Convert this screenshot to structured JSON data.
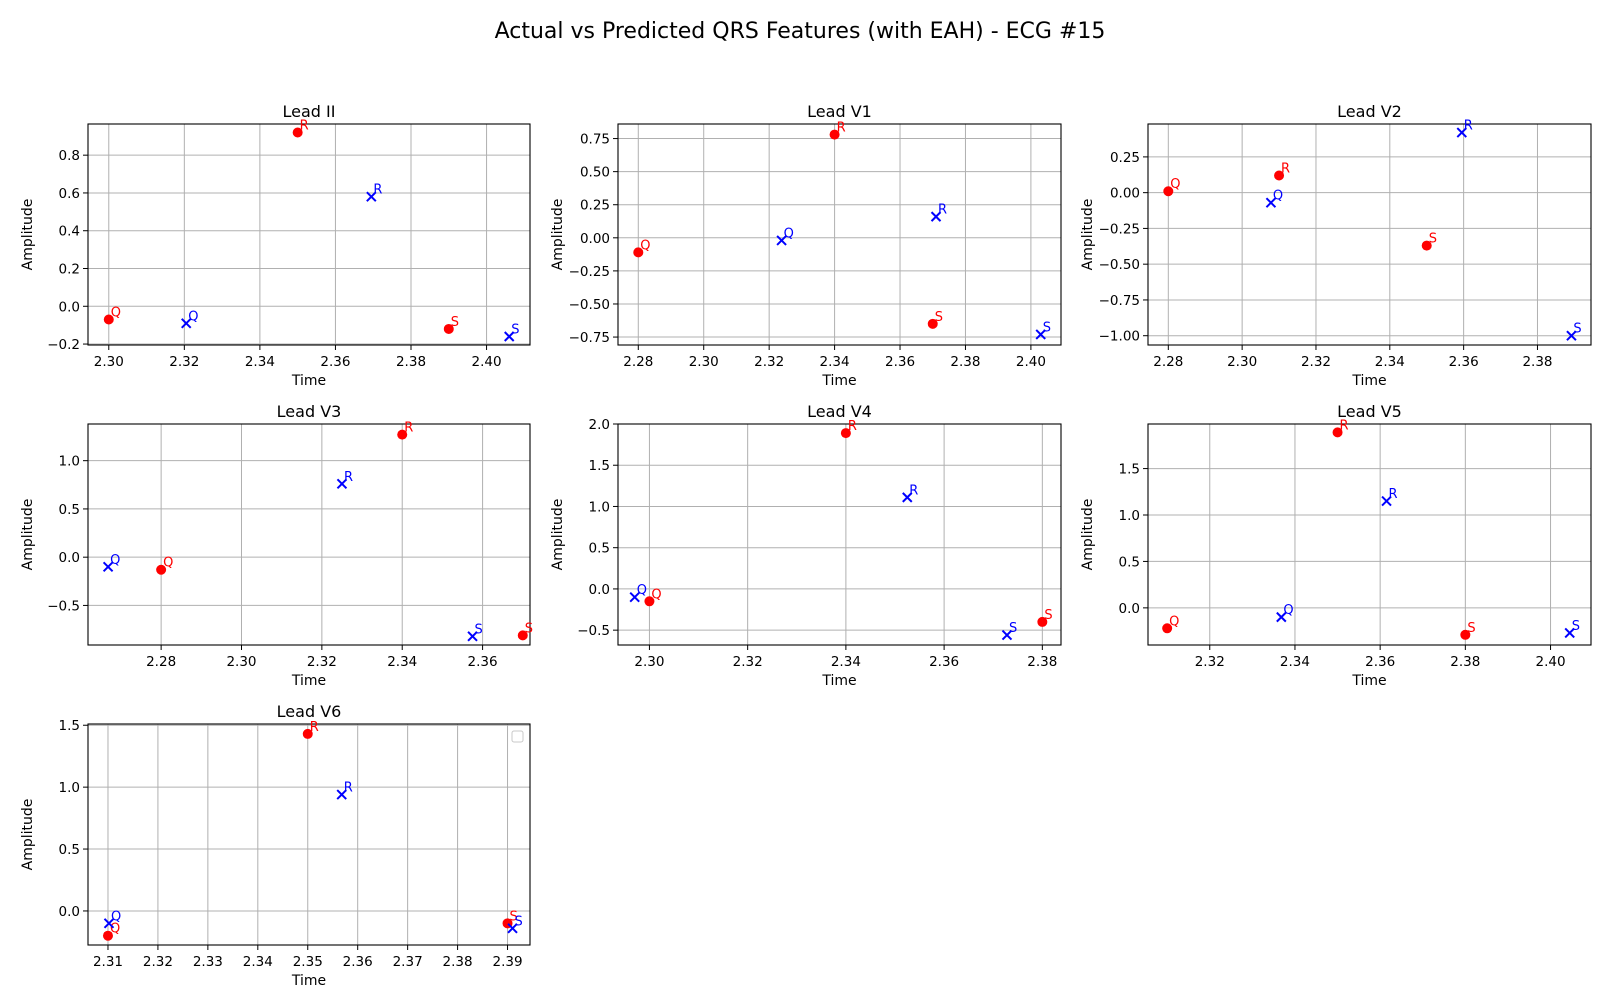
{
  "figure": {
    "title": "Actual vs Predicted QRS Features (with EAH) - ECG #15"
  },
  "colors": {
    "actual": "#ff0000",
    "predicted": "#0000ff",
    "grid": "#b0b0b0",
    "axis": "#000000"
  },
  "chart_data": [
    {
      "type": "scatter",
      "title": "Lead II",
      "xlabel": "Time",
      "ylabel": "Amplitude",
      "xlim": [
        2.2945,
        2.4115
      ],
      "ylim": [
        -0.205,
        0.965
      ],
      "xticks": [
        2.3,
        2.32,
        2.34,
        2.36,
        2.38,
        2.4
      ],
      "xtick_labels": [
        "2.30",
        "2.32",
        "2.34",
        "2.36",
        "2.38",
        "2.40"
      ],
      "yticks": [
        -0.2,
        0.0,
        0.2,
        0.4,
        0.6,
        0.8
      ],
      "ytick_labels": [
        "−0.2",
        "0.0",
        "0.2",
        "0.4",
        "0.6",
        "0.8"
      ],
      "grid": true,
      "series": [
        {
          "marker": "circle",
          "color": "#ff0000",
          "points": [
            {
              "label": "Q",
              "x": 2.3,
              "y": -0.07
            },
            {
              "label": "R",
              "x": 2.35,
              "y": 0.92
            },
            {
              "label": "S",
              "x": 2.39,
              "y": -0.12
            }
          ]
        },
        {
          "marker": "x",
          "color": "#0000ff",
          "points": [
            {
              "label": "Q",
              "x": 2.3205,
              "y": -0.09
            },
            {
              "label": "R",
              "x": 2.3695,
              "y": 0.58
            },
            {
              "label": "S",
              "x": 2.406,
              "y": -0.16
            }
          ]
        }
      ]
    },
    {
      "type": "scatter",
      "title": "Lead V1",
      "xlabel": "Time",
      "ylabel": "Amplitude",
      "xlim": [
        2.2738,
        2.4092
      ],
      "ylim": [
        -0.81,
        0.86
      ],
      "xticks": [
        2.28,
        2.3,
        2.32,
        2.34,
        2.36,
        2.38,
        2.4
      ],
      "xtick_labels": [
        "2.28",
        "2.30",
        "2.32",
        "2.34",
        "2.36",
        "2.38",
        "2.40"
      ],
      "yticks": [
        -0.75,
        -0.5,
        -0.25,
        0.0,
        0.25,
        0.5,
        0.75
      ],
      "ytick_labels": [
        "−0.75",
        "−0.50",
        "−0.25",
        "0.00",
        "0.25",
        "0.50",
        "0.75"
      ],
      "grid": true,
      "series": [
        {
          "marker": "circle",
          "color": "#ff0000",
          "points": [
            {
              "label": "Q",
              "x": 2.28,
              "y": -0.11
            },
            {
              "label": "R",
              "x": 2.34,
              "y": 0.78
            },
            {
              "label": "S",
              "x": 2.37,
              "y": -0.65
            }
          ]
        },
        {
          "marker": "x",
          "color": "#0000ff",
          "points": [
            {
              "label": "Q",
              "x": 2.3238,
              "y": -0.02
            },
            {
              "label": "R",
              "x": 2.371,
              "y": 0.16
            },
            {
              "label": "S",
              "x": 2.403,
              "y": -0.73
            }
          ]
        }
      ]
    },
    {
      "type": "scatter",
      "title": "Lead V2",
      "xlabel": "Time",
      "ylabel": "Amplitude",
      "xlim": [
        2.2745,
        2.3945
      ],
      "ylim": [
        -1.065,
        0.48
      ],
      "xticks": [
        2.28,
        2.3,
        2.32,
        2.34,
        2.36,
        2.38
      ],
      "xtick_labels": [
        "2.28",
        "2.30",
        "2.32",
        "2.34",
        "2.36",
        "2.38"
      ],
      "yticks": [
        -1.0,
        -0.75,
        -0.5,
        -0.25,
        0.0,
        0.25
      ],
      "ytick_labels": [
        "−1.00",
        "−0.75",
        "−0.50",
        "−0.25",
        "0.00",
        "0.25"
      ],
      "grid": true,
      "series": [
        {
          "marker": "circle",
          "color": "#ff0000",
          "points": [
            {
              "label": "Q",
              "x": 2.28,
              "y": 0.01
            },
            {
              "label": "R",
              "x": 2.31,
              "y": 0.12
            },
            {
              "label": "S",
              "x": 2.35,
              "y": -0.37
            }
          ]
        },
        {
          "marker": "x",
          "color": "#0000ff",
          "points": [
            {
              "label": "Q",
              "x": 2.3078,
              "y": -0.07
            },
            {
              "label": "R",
              "x": 2.3595,
              "y": 0.42
            },
            {
              "label": "S",
              "x": 2.3892,
              "y": -1.0
            }
          ]
        }
      ]
    },
    {
      "type": "scatter",
      "title": "Lead V3",
      "xlabel": "Time",
      "ylabel": "Amplitude",
      "xlim": [
        2.2618,
        2.3718
      ],
      "ylim": [
        -0.91,
        1.38
      ],
      "xticks": [
        2.28,
        2.3,
        2.32,
        2.34,
        2.36
      ],
      "xtick_labels": [
        "2.28",
        "2.30",
        "2.32",
        "2.34",
        "2.36"
      ],
      "yticks": [
        -0.5,
        0.0,
        0.5,
        1.0
      ],
      "ytick_labels": [
        "−0.5",
        "0.0",
        "0.5",
        "1.0"
      ],
      "grid": true,
      "series": [
        {
          "marker": "circle",
          "color": "#ff0000",
          "points": [
            {
              "label": "Q",
              "x": 2.28,
              "y": -0.13
            },
            {
              "label": "R",
              "x": 2.34,
              "y": 1.27
            },
            {
              "label": "S",
              "x": 2.37,
              "y": -0.81
            }
          ]
        },
        {
          "marker": "x",
          "color": "#0000ff",
          "points": [
            {
              "label": "Q",
              "x": 2.2668,
              "y": -0.1
            },
            {
              "label": "R",
              "x": 2.325,
              "y": 0.76
            },
            {
              "label": "S",
              "x": 2.3575,
              "y": -0.82
            }
          ]
        }
      ]
    },
    {
      "type": "scatter",
      "title": "Lead V4",
      "xlabel": "Time",
      "ylabel": "Amplitude",
      "xlim": [
        2.2936,
        2.3838
      ],
      "ylim": [
        -0.68,
        2.0
      ],
      "xticks": [
        2.3,
        2.32,
        2.34,
        2.36,
        2.38
      ],
      "xtick_labels": [
        "2.30",
        "2.32",
        "2.34",
        "2.36",
        "2.38"
      ],
      "yticks": [
        -0.5,
        0.0,
        0.5,
        1.0,
        1.5,
        2.0
      ],
      "ytick_labels": [
        "−0.5",
        "0.0",
        "0.5",
        "1.0",
        "1.5",
        "2.0"
      ],
      "grid": true,
      "series": [
        {
          "marker": "circle",
          "color": "#ff0000",
          "points": [
            {
              "label": "Q",
              "x": 2.3,
              "y": -0.15
            },
            {
              "label": "R",
              "x": 2.34,
              "y": 1.89
            },
            {
              "label": "S",
              "x": 2.38,
              "y": -0.4
            }
          ]
        },
        {
          "marker": "x",
          "color": "#0000ff",
          "points": [
            {
              "label": "Q",
              "x": 2.297,
              "y": -0.1
            },
            {
              "label": "R",
              "x": 2.3525,
              "y": 1.11
            },
            {
              "label": "S",
              "x": 2.3728,
              "y": -0.56
            }
          ]
        }
      ]
    },
    {
      "type": "scatter",
      "title": "Lead V5",
      "xlabel": "Time",
      "ylabel": "Amplitude",
      "xlim": [
        2.3055,
        2.4095
      ],
      "ylim": [
        -0.4,
        1.98
      ],
      "xticks": [
        2.32,
        2.34,
        2.36,
        2.38,
        2.4
      ],
      "xtick_labels": [
        "2.32",
        "2.34",
        "2.36",
        "2.38",
        "2.40"
      ],
      "yticks": [
        0.0,
        0.5,
        1.0,
        1.5
      ],
      "ytick_labels": [
        "0.0",
        "0.5",
        "1.0",
        "1.5"
      ],
      "grid": true,
      "series": [
        {
          "marker": "circle",
          "color": "#ff0000",
          "points": [
            {
              "label": "Q",
              "x": 2.31,
              "y": -0.22
            },
            {
              "label": "R",
              "x": 2.35,
              "y": 1.89
            },
            {
              "label": "S",
              "x": 2.38,
              "y": -0.29
            }
          ]
        },
        {
          "marker": "x",
          "color": "#0000ff",
          "points": [
            {
              "label": "Q",
              "x": 2.3368,
              "y": -0.1
            },
            {
              "label": "R",
              "x": 2.3615,
              "y": 1.15
            },
            {
              "label": "S",
              "x": 2.4045,
              "y": -0.27
            }
          ]
        }
      ]
    },
    {
      "type": "scatter",
      "title": "Lead V6",
      "xlabel": "Time",
      "ylabel": "Amplitude",
      "xlim": [
        2.306,
        2.3945
      ],
      "ylim": [
        -0.275,
        1.51
      ],
      "xticks": [
        2.31,
        2.32,
        2.33,
        2.34,
        2.35,
        2.36,
        2.37,
        2.38,
        2.39
      ],
      "xtick_labels": [
        "2.31",
        "2.32",
        "2.33",
        "2.34",
        "2.35",
        "2.36",
        "2.37",
        "2.38",
        "2.39"
      ],
      "yticks": [
        0.0,
        0.5,
        1.0,
        1.5
      ],
      "ytick_labels": [
        "0.0",
        "0.5",
        "1.0",
        "1.5"
      ],
      "grid": true,
      "legend": "top-right",
      "series": [
        {
          "marker": "circle",
          "color": "#ff0000",
          "points": [
            {
              "label": "Q",
              "x": 2.31,
              "y": -0.2
            },
            {
              "label": "R",
              "x": 2.35,
              "y": 1.43
            },
            {
              "label": "S",
              "x": 2.39,
              "y": -0.1
            }
          ]
        },
        {
          "marker": "x",
          "color": "#0000ff",
          "points": [
            {
              "label": "Q",
              "x": 2.3102,
              "y": -0.1
            },
            {
              "label": "R",
              "x": 2.3568,
              "y": 0.94
            },
            {
              "label": "S",
              "x": 2.391,
              "y": -0.14
            }
          ]
        }
      ]
    }
  ]
}
